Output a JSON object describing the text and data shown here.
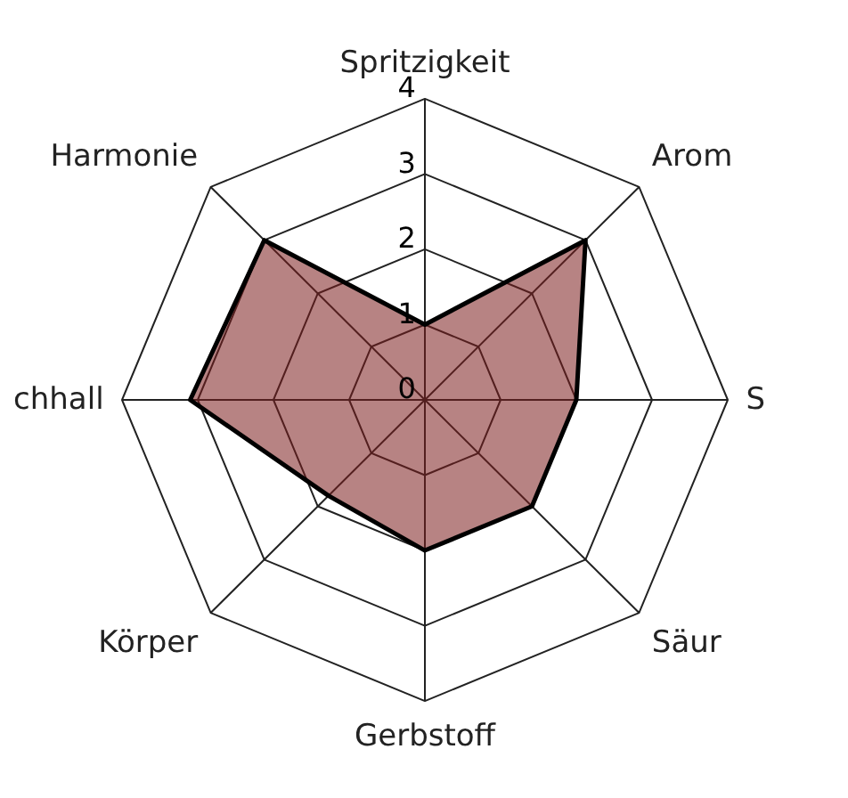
{
  "chart_data": {
    "type": "radar",
    "categories": [
      "Spritzigkeit",
      "Arom",
      "S",
      "Säur",
      "Gerbstoff",
      "Körper",
      "chhall",
      "Harmonie"
    ],
    "series": [
      {
        "color": "#7b1e1e",
        "values": [
          1.0,
          3.0,
          2.0,
          2.0,
          2.0,
          1.8,
          3.1,
          3.0
        ]
      }
    ],
    "ylim": [
      0,
      4
    ],
    "yticks": [
      0,
      1,
      2,
      3,
      4
    ],
    "grid": true
  }
}
